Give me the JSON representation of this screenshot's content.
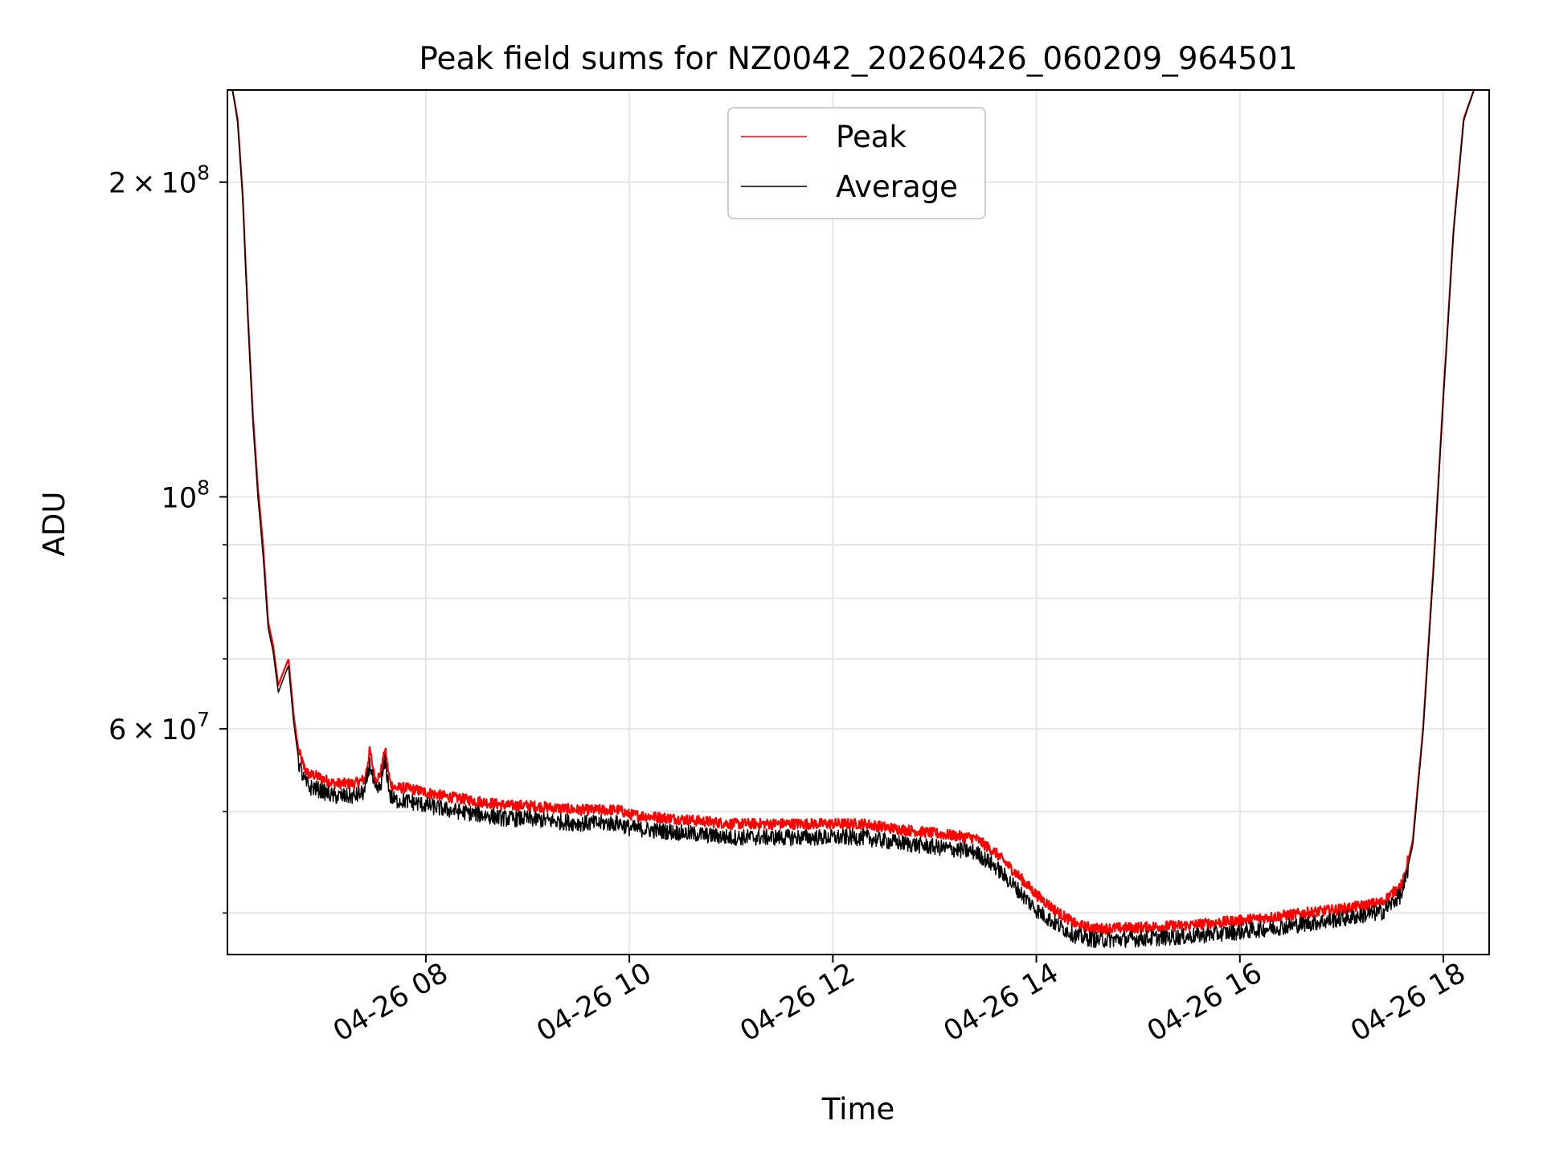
{
  "chart_data": {
    "type": "line",
    "title": "Peak field sums for NZ0042_20260426_060209_964501",
    "xlabel": "Time",
    "ylabel": "ADU",
    "yscale": "log",
    "ylim": [
      36500000,
      245000000
    ],
    "xlim": [
      6.05,
      18.45
    ],
    "grid": true,
    "legend_position": "upper center",
    "x_ticks": [
      {
        "value": 8,
        "label": "04-26 08"
      },
      {
        "value": 10,
        "label": "04-26 10"
      },
      {
        "value": 12,
        "label": "04-26 12"
      },
      {
        "value": 14,
        "label": "04-26 14"
      },
      {
        "value": 16,
        "label": "04-26 16"
      },
      {
        "value": 18,
        "label": "04-26 18"
      }
    ],
    "y_major_ticks": [
      {
        "value": 200000000,
        "mantissa": "2",
        "exponent": "8"
      },
      {
        "value": 100000000,
        "mantissa": "",
        "exponent": "8"
      },
      {
        "value": 60000000,
        "mantissa": "6",
        "exponent": "7"
      }
    ],
    "y_minor_ticks": [
      40000000,
      50000000,
      70000000,
      80000000,
      90000000
    ],
    "series": [
      {
        "name": "Peak",
        "color": "#ff0000",
        "x": [
          6.05,
          6.1,
          6.15,
          6.2,
          6.25,
          6.3,
          6.35,
          6.4,
          6.45,
          6.5,
          6.55,
          6.6,
          6.65,
          6.7,
          6.75,
          6.8,
          6.85,
          6.9,
          7.0,
          7.1,
          7.2,
          7.3,
          7.4,
          7.45,
          7.5,
          7.55,
          7.6,
          7.65,
          7.7,
          7.8,
          8.0,
          8.2,
          8.5,
          8.8,
          9.0,
          9.5,
          9.9,
          10.0,
          10.5,
          11.0,
          11.3,
          11.5,
          12.0,
          12.3,
          12.6,
          13.0,
          13.4,
          13.6,
          13.8,
          14.0,
          14.2,
          14.4,
          14.6,
          15.0,
          15.5,
          16.0,
          16.5,
          17.0,
          17.4,
          17.6,
          17.7,
          17.8,
          17.9,
          18.0,
          18.1,
          18.2,
          18.3,
          18.45
        ],
        "y": [
          245000000,
          245000000,
          230000000,
          195000000,
          150000000,
          120000000,
          102000000,
          90000000,
          76000000,
          72000000,
          66000000,
          68000000,
          70000000,
          62000000,
          57000000,
          55000000,
          54000000,
          54000000,
          53500000,
          53000000,
          53000000,
          53000000,
          53500000,
          57000000,
          53500000,
          54000000,
          57000000,
          53000000,
          52500000,
          52500000,
          52000000,
          51500000,
          51000000,
          50500000,
          50500000,
          50000000,
          50000000,
          49500000,
          49000000,
          48500000,
          48500000,
          48500000,
          48500000,
          48500000,
          48000000,
          47500000,
          47000000,
          45500000,
          43500000,
          41500000,
          40000000,
          38800000,
          38500000,
          38600000,
          38800000,
          39200000,
          39700000,
          40200000,
          40800000,
          42500000,
          47000000,
          60000000,
          85000000,
          125000000,
          180000000,
          230000000,
          245000000,
          245000000
        ]
      },
      {
        "name": "Average",
        "color": "#000000",
        "x": [
          6.05,
          6.1,
          6.15,
          6.2,
          6.25,
          6.3,
          6.35,
          6.4,
          6.45,
          6.5,
          6.55,
          6.6,
          6.65,
          6.7,
          6.75,
          6.8,
          6.85,
          6.9,
          7.0,
          7.1,
          7.2,
          7.3,
          7.4,
          7.45,
          7.5,
          7.55,
          7.6,
          7.65,
          7.7,
          7.8,
          8.0,
          8.2,
          8.5,
          8.8,
          9.0,
          9.5,
          9.9,
          10.0,
          10.5,
          11.0,
          11.3,
          11.5,
          12.0,
          12.3,
          12.6,
          13.0,
          13.4,
          13.6,
          13.8,
          14.0,
          14.2,
          14.4,
          14.6,
          15.0,
          15.5,
          16.0,
          16.5,
          17.0,
          17.4,
          17.6,
          17.7,
          17.8,
          17.9,
          18.0,
          18.1,
          18.2,
          18.3,
          18.45
        ],
        "y": [
          245000000,
          245000000,
          228000000,
          193000000,
          148000000,
          118000000,
          100000000,
          88000000,
          75000000,
          71000000,
          65000000,
          67000000,
          69000000,
          61000000,
          56000000,
          54000000,
          53000000,
          53000000,
          52500000,
          52000000,
          52000000,
          52000000,
          52500000,
          56000000,
          52500000,
          53000000,
          56000000,
          52000000,
          51500000,
          51500000,
          51000000,
          50500000,
          50000000,
          49500000,
          49500000,
          49000000,
          49000000,
          48500000,
          48000000,
          47500000,
          47500000,
          47500000,
          47500000,
          47500000,
          47000000,
          46500000,
          46000000,
          44500000,
          42500000,
          40500000,
          39200000,
          38200000,
          37900000,
          38000000,
          38200000,
          38600000,
          39100000,
          39700000,
          40300000,
          42000000,
          46500000,
          59500000,
          84000000,
          124000000,
          179000000,
          229000000,
          245000000,
          245000000
        ]
      }
    ]
  }
}
